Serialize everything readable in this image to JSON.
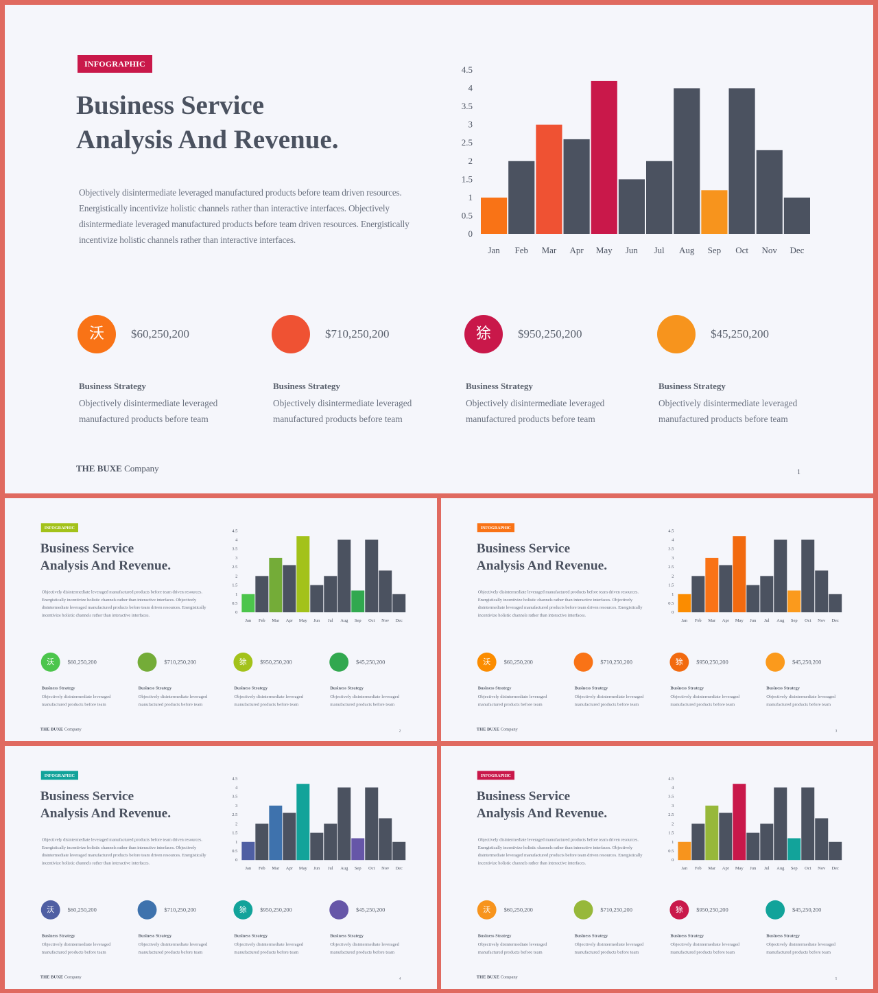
{
  "template": {
    "tag": "INFOGRAPHIC",
    "title_line1": "Business Service",
    "title_line2": "Analysis And Revenue.",
    "paragraph": "Objectively disintermediate leveraged manufactured products before team driven resources. Energistically incentivize holistic channels rather than interactive interfaces. Objectively disintermediate leveraged manufactured products before team driven resources. Energistically incentivize holistic channels rather than interactive interfaces.",
    "stat_title": "Business Strategy",
    "stat_desc": "Objectively disintermediate leveraged manufactured products before team",
    "brand_bold": "THE BUXE",
    "brand_rest": " Company"
  },
  "stats": [
    {
      "amount": "$60,250,200",
      "glyph": "沃"
    },
    {
      "amount": "$710,250,200",
      "glyph": ""
    },
    {
      "amount": "$950,250,200",
      "glyph": "狳"
    },
    {
      "amount": "$45,250,200",
      "glyph": ""
    }
  ],
  "chart_data": {
    "type": "bar",
    "categories": [
      "Jan",
      "Feb",
      "Mar",
      "Apr",
      "May",
      "Jun",
      "Jul",
      "Aug",
      "Sep",
      "Oct",
      "Nov",
      "Dec"
    ],
    "values": [
      1,
      2,
      3,
      2.6,
      4.2,
      1.5,
      2,
      4,
      1.2,
      4,
      2.3,
      1
    ],
    "ylim": [
      0,
      4.5
    ],
    "yticks": [
      0,
      0.5,
      1,
      1.5,
      2,
      2.5,
      3,
      3.5,
      4,
      4.5
    ],
    "base_color": "#4b5260"
  },
  "slides": [
    {
      "page": "1",
      "tag_color": "#c9184a",
      "bar_colors": {
        "0": "#f97316",
        "2": "#ef5233",
        "4": "#c9184a",
        "8": "#f7941d"
      },
      "circle_colors": [
        "#f97316",
        "#ef5233",
        "#c9184a",
        "#f7941d"
      ]
    },
    {
      "page": "2",
      "tag_color": "#a3c21a",
      "bar_colors": {
        "0": "#4cc54c",
        "2": "#74ac38",
        "4": "#a3c21a",
        "8": "#31a84f"
      },
      "circle_colors": [
        "#4cc54c",
        "#74ac38",
        "#a3c21a",
        "#31a84f"
      ]
    },
    {
      "page": "3",
      "tag_color": "#f97316",
      "bar_colors": {
        "0": "#fb8c00",
        "2": "#f97316",
        "4": "#f26a0f",
        "8": "#fb9a1c"
      },
      "circle_colors": [
        "#fb8c00",
        "#f97316",
        "#f26a0f",
        "#fb9a1c"
      ]
    },
    {
      "page": "4",
      "tag_color": "#12a39a",
      "bar_colors": {
        "0": "#4f5fa3",
        "2": "#3e72ad",
        "4": "#12a39a",
        "8": "#6656a8"
      },
      "circle_colors": [
        "#4f5fa3",
        "#3e72ad",
        "#12a39a",
        "#6656a8"
      ]
    },
    {
      "page": "5",
      "tag_color": "#c9184a",
      "bar_colors": {
        "0": "#f7941d",
        "2": "#97b83a",
        "4": "#c9184a",
        "8": "#12a39a"
      },
      "circle_colors": [
        "#f7941d",
        "#97b83a",
        "#c9184a",
        "#12a39a"
      ]
    }
  ]
}
